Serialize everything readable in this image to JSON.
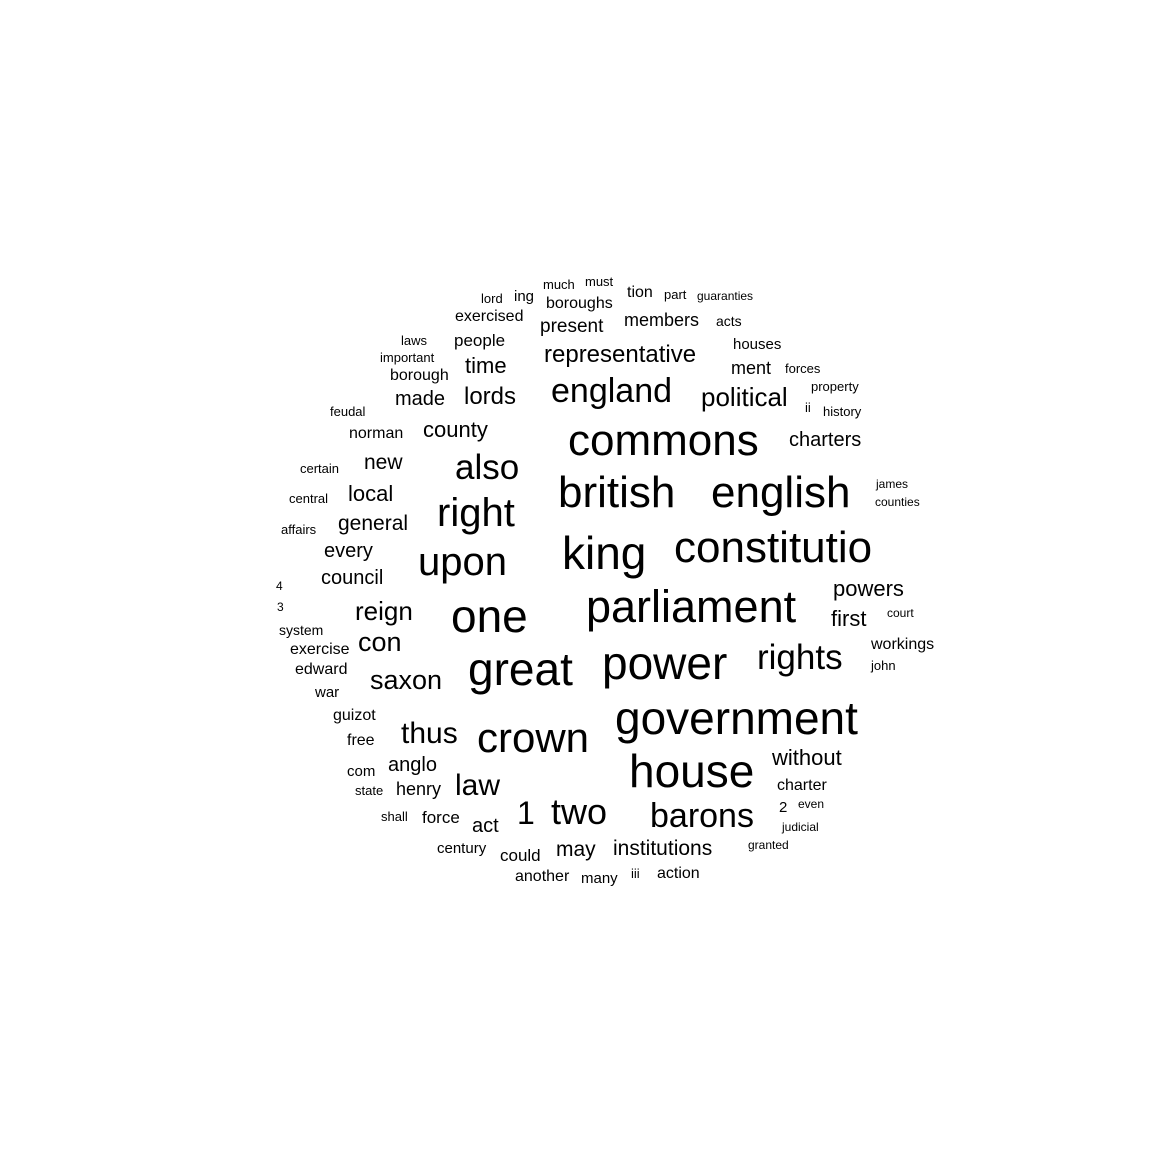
{
  "canvas": {
    "background": "#ffffff",
    "text_color": "#000000"
  },
  "words": [
    "government",
    "commons",
    "british",
    "english",
    "king",
    "constitutio",
    "parliament",
    "power",
    "great",
    "one",
    "house",
    "crown",
    "right",
    "upon",
    "also",
    "england",
    "rights",
    "barons",
    "two",
    "representative",
    "political",
    "law",
    "thus",
    "saxon",
    "reign",
    "con",
    "1",
    "county",
    "lords",
    "charters",
    "powers",
    "local",
    "general",
    "without",
    "institutions",
    "first",
    "time",
    "made",
    "new",
    "every",
    "council",
    "anglo",
    "henry",
    "may",
    "act",
    "force",
    "could",
    "present",
    "members",
    "people",
    "exercised",
    "boroughs",
    "borough",
    "norman",
    "workings",
    "charter",
    "action",
    "another",
    "many",
    "century",
    "guizot",
    "free",
    "edward",
    "exercise",
    "war",
    "com",
    "houses",
    "ment",
    "system",
    "tion",
    "ing",
    "much",
    "must",
    "lord",
    "part",
    "guaranties",
    "acts",
    "laws",
    "important",
    "forces",
    "property",
    "history",
    "feudal",
    "certain",
    "central",
    "affairs",
    "james",
    "counties",
    "court",
    "john",
    "state",
    "shall",
    "2",
    "even",
    "judicial",
    "granted",
    "iii",
    "ii",
    "4",
    "3"
  ]
}
